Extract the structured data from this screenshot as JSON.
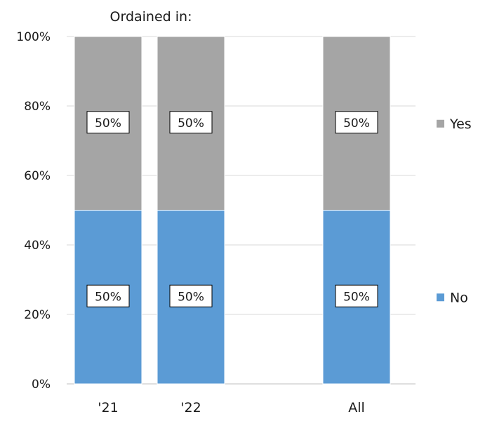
{
  "chart_data": {
    "type": "bar",
    "stacked": true,
    "percent_stacked": true,
    "title": "Ordained in:",
    "categories": [
      "'21",
      "'22",
      "",
      "All"
    ],
    "series": [
      {
        "name": "No",
        "color": "#5b9bd5",
        "values": [
          50,
          50,
          null,
          50
        ],
        "labels": [
          "50%",
          "50%",
          "",
          "50%"
        ]
      },
      {
        "name": "Yes",
        "color": "#a5a5a5",
        "values": [
          50,
          50,
          null,
          50
        ],
        "labels": [
          "50%",
          "50%",
          "",
          "50%"
        ]
      }
    ],
    "y_ticks": [
      "0%",
      "20%",
      "40%",
      "60%",
      "80%",
      "100%"
    ],
    "ylim": [
      0,
      100
    ],
    "grid": true,
    "legend_position": "right"
  }
}
